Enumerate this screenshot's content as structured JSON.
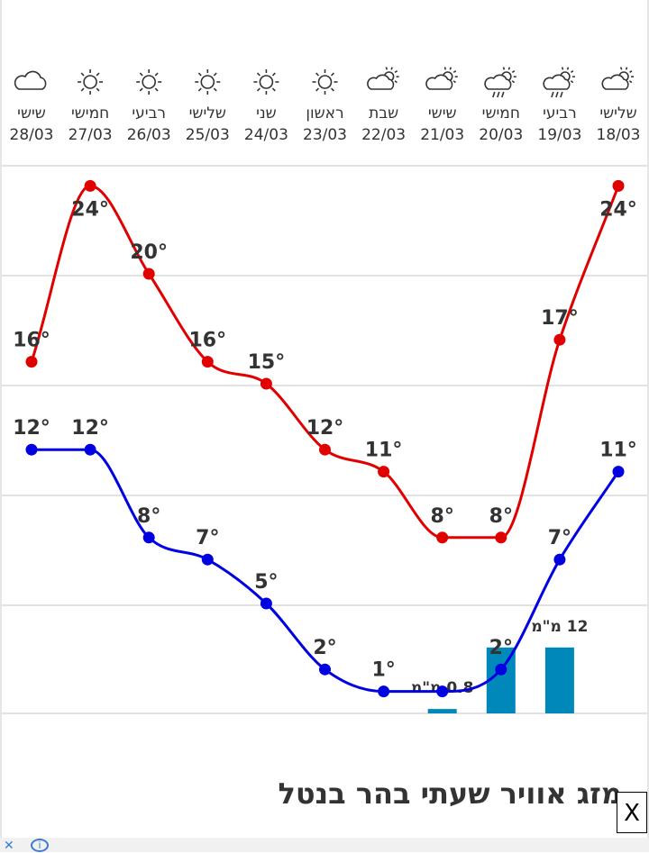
{
  "chart_data": {
    "type": "line",
    "days": [
      {
        "day": "שישי",
        "date": "28/03",
        "icon": "cloud-icon"
      },
      {
        "day": "חמישי",
        "date": "27/03",
        "icon": "sun-icon"
      },
      {
        "day": "רביעי",
        "date": "26/03",
        "icon": "sun-icon"
      },
      {
        "day": "שלישי",
        "date": "25/03",
        "icon": "sun-icon"
      },
      {
        "day": "שני",
        "date": "24/03",
        "icon": "sun-icon"
      },
      {
        "day": "ראשון",
        "date": "23/03",
        "icon": "sun-icon"
      },
      {
        "day": "שבת",
        "date": "22/03",
        "icon": "partly-cloudy-icon"
      },
      {
        "day": "שישי",
        "date": "21/03",
        "icon": "partly-cloudy-icon"
      },
      {
        "day": "חמישי",
        "date": "20/03",
        "icon": "rain-icon"
      },
      {
        "day": "רביעי",
        "date": "19/03",
        "icon": "rain-icon"
      },
      {
        "day": "שלישי",
        "date": "18/03",
        "icon": "partly-cloudy-icon"
      }
    ],
    "series": [
      {
        "key": "max",
        "color": "#e00000",
        "values": [
          16,
          24,
          20,
          16,
          15,
          12,
          11,
          8,
          8,
          17,
          24
        ]
      },
      {
        "key": "min",
        "color": "#0000e0",
        "values": [
          12,
          12,
          8,
          7,
          5,
          2,
          1,
          1,
          2,
          7,
          11
        ]
      }
    ],
    "precipitation": {
      "color": "#0088bb",
      "values": [
        null,
        null,
        null,
        null,
        null,
        null,
        null,
        0.8,
        12,
        12,
        null
      ],
      "labels": [
        "",
        "",
        "",
        "",
        "",
        "",
        "",
        "0.8 מ\"מ",
        "",
        "12 מ\"מ",
        ""
      ]
    },
    "temp_labels": {
      "max": [
        "16°",
        "24°",
        "20°",
        "16°",
        "15°",
        "12°",
        "11°",
        "8°",
        "8°",
        "17°",
        "24°"
      ],
      "min": [
        "12°",
        "12°",
        "8°",
        "7°",
        "5°",
        "2°",
        "1°",
        "",
        "2°",
        "7°",
        "11°"
      ]
    },
    "ylim": [
      0,
      26
    ],
    "grid": true
  },
  "footer": {
    "title": "מזג אוויר שעתי בהר בנטל",
    "close_label": "X"
  }
}
